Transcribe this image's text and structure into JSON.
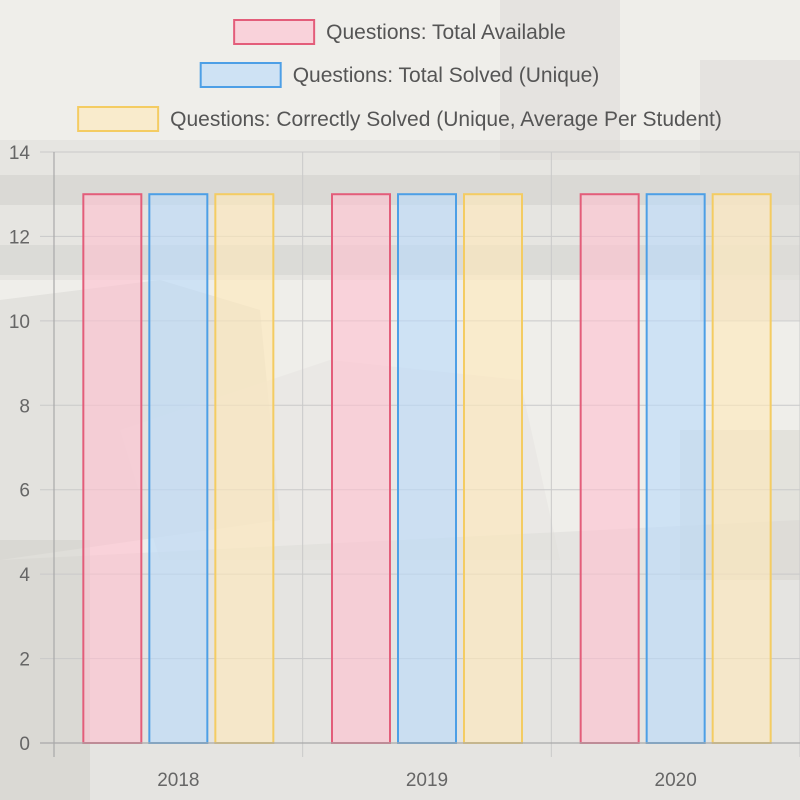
{
  "chart_data": {
    "type": "bar",
    "categories": [
      "2018",
      "2019",
      "2020"
    ],
    "series": [
      {
        "name": "Questions: Total Available",
        "values": [
          13,
          13,
          13
        ],
        "color": "#e35d7a",
        "fill": "rgba(255, 192, 206, 0.6)"
      },
      {
        "name": "Questions: Total Solved (Unique)",
        "values": [
          13,
          13,
          13
        ],
        "color": "#4d9fe6",
        "fill": "rgba(186, 218, 250, 0.62)"
      },
      {
        "name": "Questions: Correctly Solved (Unique, Average Per Student)",
        "values": [
          13,
          13,
          13
        ],
        "color": "#f4cc62",
        "fill": "rgba(255, 232, 185, 0.62)"
      }
    ],
    "yticks": [
      "0",
      "2",
      "4",
      "6",
      "8",
      "10",
      "12",
      "14"
    ],
    "ylim": [
      0,
      14
    ],
    "grid": true,
    "legend_position": "top"
  }
}
